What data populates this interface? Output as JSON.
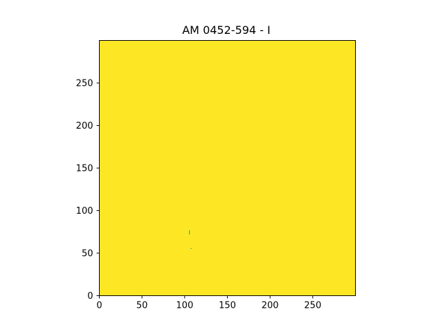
{
  "chart_data": {
    "type": "heatmap",
    "title": "AM 0452-594 - I",
    "xlabel": "",
    "ylabel": "",
    "xlim": [
      0,
      300
    ],
    "ylim": [
      0,
      300
    ],
    "x_ticks": [
      0,
      50,
      100,
      150,
      200,
      250
    ],
    "y_ticks": [
      0,
      50,
      100,
      150,
      200,
      250
    ],
    "x_tick_labels": [
      "0",
      "50",
      "100",
      "150",
      "200",
      "250"
    ],
    "y_tick_labels": [
      "0",
      "50",
      "100",
      "150",
      "200",
      "250"
    ],
    "grid": false,
    "origin": "lower",
    "colormap": "viridis",
    "fill_color": "#fde725",
    "features": [
      {
        "x": 105,
        "y": 72,
        "w": 1,
        "h": 5,
        "color": "#35b779"
      },
      {
        "x": 107,
        "y": 55,
        "w": 1,
        "h": 1,
        "color": "#21918c"
      }
    ]
  }
}
